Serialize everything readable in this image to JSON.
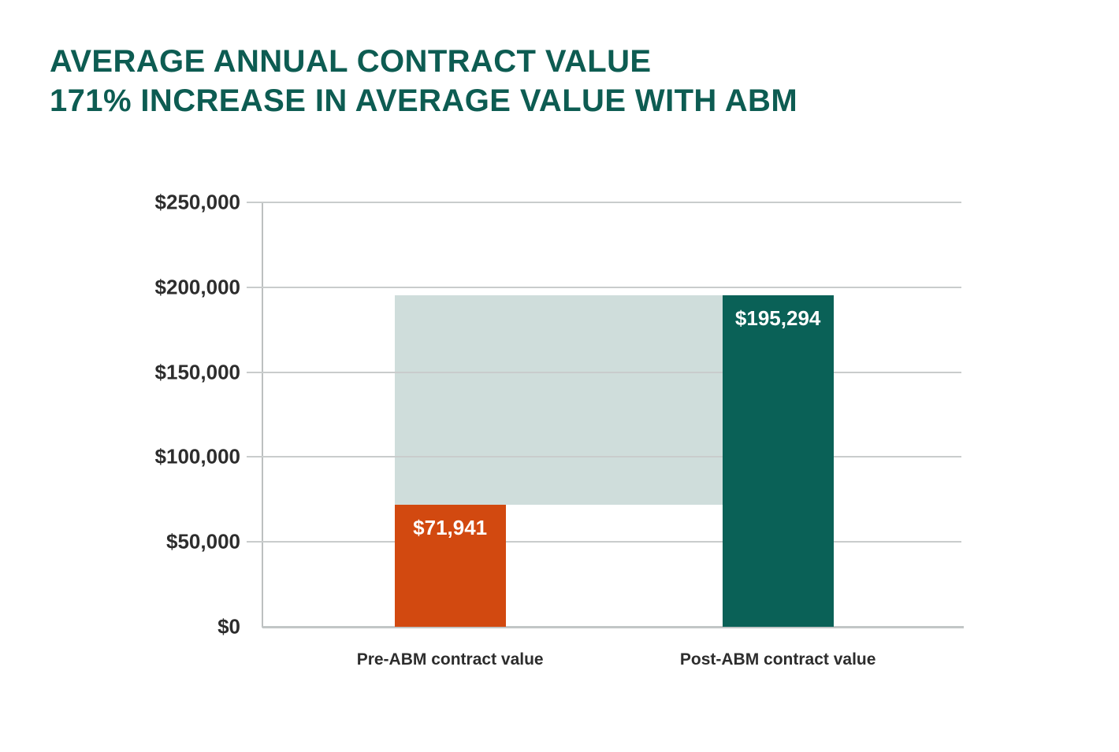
{
  "title": {
    "line1": "AVERAGE ANNUAL CONTRACT VALUE",
    "line2": "171% INCREASE IN AVERAGE VALUE WITH ABM",
    "color": "#0d5c52"
  },
  "chart_data": {
    "type": "bar",
    "title": "AVERAGE ANNUAL CONTRACT VALUE — 171% INCREASE IN AVERAGE VALUE WITH ABM",
    "categories": [
      "Pre-ABM contract value",
      "Post-ABM contract value"
    ],
    "values": [
      71941,
      195294
    ],
    "value_labels": [
      "$71,941",
      "$195,294"
    ],
    "series_colors": [
      "#d24910",
      "#0a6157"
    ],
    "increase_band": {
      "from_value": 71941,
      "to_value": 195294,
      "color": "#cfdddb"
    },
    "ylim": [
      0,
      250000
    ],
    "y_ticks": [
      {
        "value": 250000,
        "label": "$250,000"
      },
      {
        "value": 200000,
        "label": "$200,000"
      },
      {
        "value": 150000,
        "label": "$150,000"
      },
      {
        "value": 100000,
        "label": "$100,000"
      },
      {
        "value": 50000,
        "label": "$50,000"
      },
      {
        "value": 0,
        "label": "$0"
      }
    ],
    "grid": true,
    "legend": "none",
    "xlabel": "",
    "ylabel": ""
  },
  "colors": {
    "background": "#ffffff",
    "grid_line": "#c9cccc",
    "axis_line": "#c2c6c6",
    "tick_label": "#2d2d2d",
    "category_label": "#2d2d2d",
    "bar_value_label": "#ffffff"
  }
}
